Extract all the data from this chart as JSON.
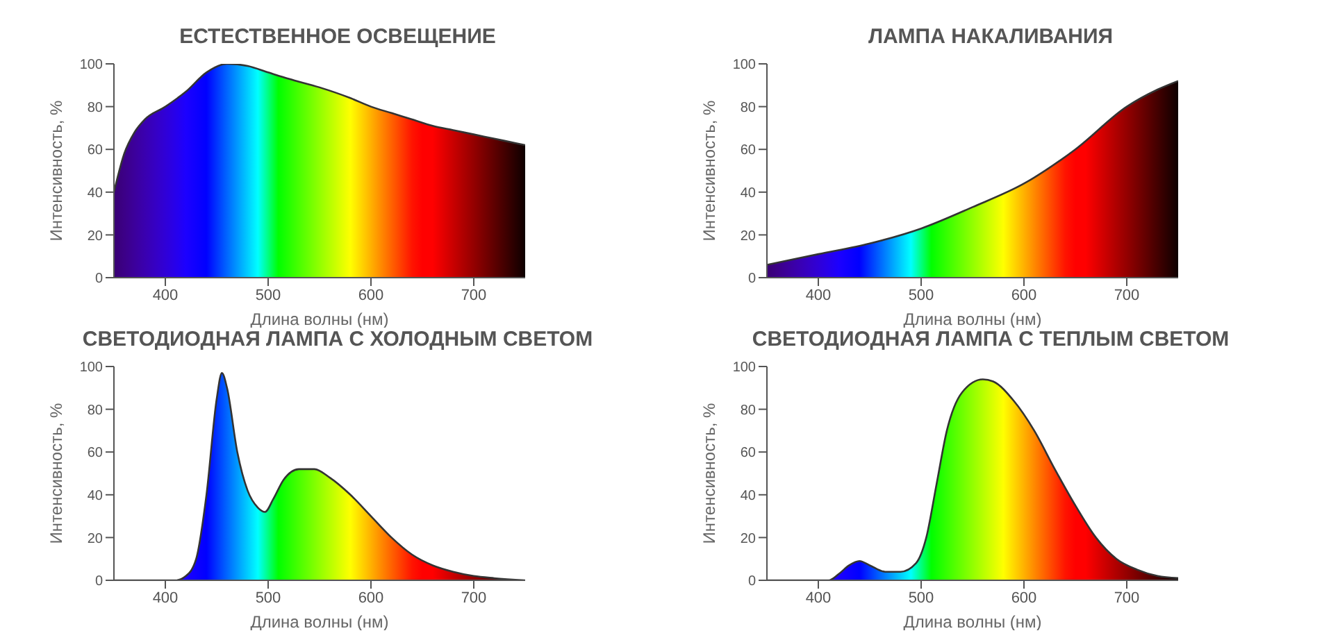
{
  "chart_data": [
    {
      "type": "area",
      "title": "ЕСТЕСТВЕННОЕ ОСВЕЩЕНИЕ",
      "xlabel": "Длина волны (нм)",
      "ylabel": "Интенсивность, %",
      "xlim": [
        350,
        750
      ],
      "xticks": [
        400,
        500,
        600,
        700
      ],
      "ylim": [
        0,
        100
      ],
      "yticks": [
        0,
        20,
        40,
        60,
        80,
        100
      ],
      "series": [
        {
          "color": "#333333",
          "x": [
            350,
            360,
            370,
            380,
            400,
            420,
            440,
            460,
            480,
            500,
            520,
            550,
            580,
            600,
            620,
            640,
            660,
            680,
            700,
            720,
            740,
            750
          ],
          "values": [
            40,
            58,
            68,
            74,
            80,
            87,
            96,
            100,
            99,
            96,
            93,
            89,
            84,
            80,
            77,
            74,
            71,
            69,
            67,
            65,
            63,
            62
          ]
        }
      ]
    },
    {
      "type": "area",
      "title": "ЛАМПА НАКАЛИВАНИЯ",
      "xlabel": "Длина волны (нм)",
      "ylabel": "Интенсивность, %",
      "xlim": [
        350,
        750
      ],
      "xticks": [
        400,
        500,
        600,
        700
      ],
      "ylim": [
        0,
        100
      ],
      "yticks": [
        0,
        20,
        40,
        60,
        80,
        100
      ],
      "series": [
        {
          "color": "#333333",
          "x": [
            350,
            400,
            450,
            500,
            550,
            600,
            650,
            700,
            730,
            750
          ],
          "values": [
            6,
            11,
            16,
            23,
            33,
            44,
            60,
            80,
            88,
            92
          ]
        }
      ]
    },
    {
      "type": "area",
      "title": "СВЕТОДИОДНАЯ ЛАМПА С ХОЛОДНЫМ СВЕТОМ",
      "xlabel": "Длина волны (нм)",
      "ylabel": "Интенсивность, %",
      "xlim": [
        350,
        750
      ],
      "xticks": [
        400,
        500,
        600,
        700
      ],
      "ylim": [
        0,
        100
      ],
      "yticks": [
        0,
        20,
        40,
        60,
        80,
        100
      ],
      "series": [
        {
          "color": "#333333",
          "x": [
            350,
            410,
            420,
            430,
            440,
            450,
            455,
            460,
            470,
            480,
            490,
            497,
            505,
            515,
            530,
            545,
            560,
            580,
            600,
            620,
            640,
            660,
            680,
            700,
            720,
            750
          ],
          "values": [
            0,
            0,
            2,
            10,
            40,
            85,
            97,
            90,
            60,
            42,
            34,
            32,
            38,
            47,
            52,
            52,
            48,
            40,
            30,
            20,
            12,
            7,
            4,
            2,
            1,
            0
          ]
        }
      ]
    },
    {
      "type": "area",
      "title": "СВЕТОДИОДНАЯ ЛАМПА С ТЕПЛЫМ СВЕТОМ",
      "xlabel": "Длина волны (нм)",
      "ylabel": "Интенсивность, %",
      "xlim": [
        350,
        750
      ],
      "xticks": [
        400,
        500,
        600,
        700
      ],
      "ylim": [
        0,
        100
      ],
      "yticks": [
        0,
        20,
        40,
        60,
        80,
        100
      ],
      "series": [
        {
          "color": "#333333",
          "x": [
            350,
            410,
            420,
            430,
            440,
            450,
            465,
            480,
            495,
            505,
            515,
            525,
            540,
            560,
            570,
            590,
            610,
            630,
            650,
            670,
            690,
            710,
            730,
            750
          ],
          "values": [
            0,
            0,
            3,
            7,
            9,
            7,
            4,
            4,
            8,
            20,
            45,
            70,
            88,
            94,
            93,
            84,
            70,
            52,
            35,
            20,
            10,
            5,
            2,
            1
          ]
        }
      ]
    }
  ]
}
